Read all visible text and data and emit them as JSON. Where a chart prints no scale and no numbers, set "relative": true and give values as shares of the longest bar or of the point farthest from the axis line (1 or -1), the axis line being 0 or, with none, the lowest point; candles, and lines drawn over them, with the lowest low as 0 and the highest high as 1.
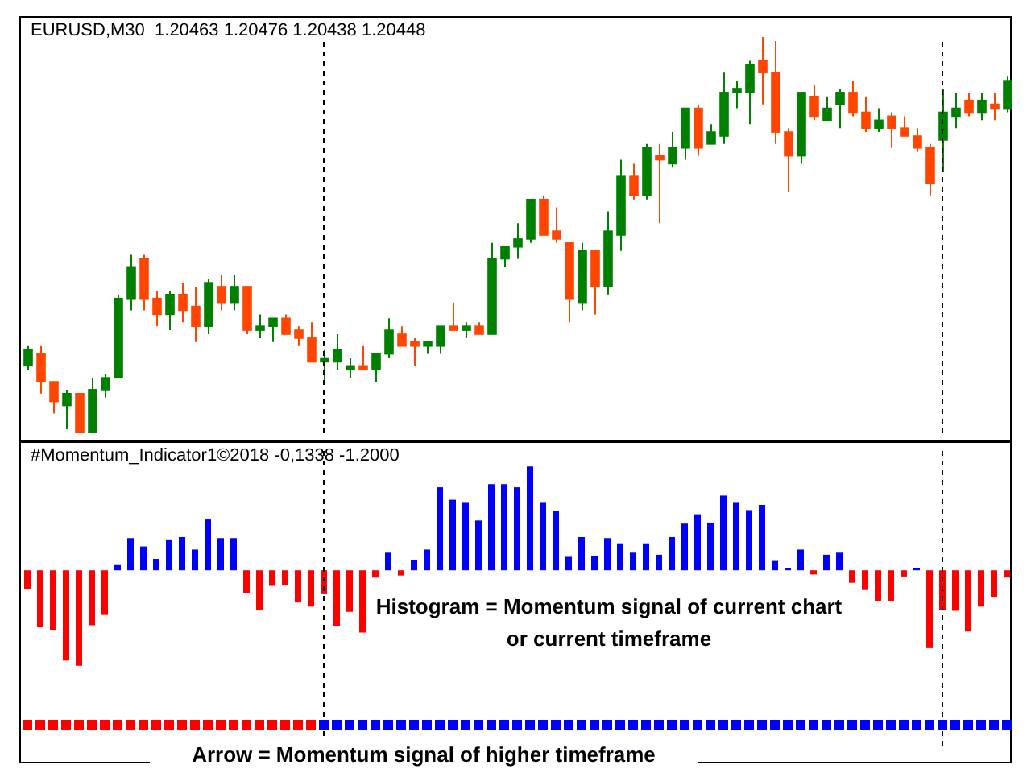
{
  "chart_data": [
    {
      "type": "candlestick",
      "title": "EURUSD,M30  1.20463 1.20476 1.20438 1.20448",
      "relative": true,
      "categories": [
        null,
        null,
        null,
        null,
        null,
        null,
        null,
        null,
        null,
        null,
        null,
        null,
        null,
        null,
        null,
        null,
        null,
        null,
        null,
        null,
        null,
        null,
        null,
        null,
        null,
        null,
        null,
        null,
        null,
        null,
        null,
        null,
        null,
        null,
        null,
        null,
        null,
        null,
        null,
        null,
        null,
        null,
        null,
        null,
        null,
        null,
        null,
        null,
        null,
        null,
        null,
        null,
        null,
        null,
        null,
        null,
        null,
        null,
        null,
        null,
        null,
        null,
        null,
        null,
        null,
        null,
        null,
        null,
        null,
        null,
        null,
        null,
        null,
        null,
        null,
        null,
        null
      ],
      "ohlc": [
        [
          0.17,
          0.22,
          0.16,
          0.21
        ],
        [
          0.2,
          0.22,
          0.1,
          0.13
        ],
        [
          0.13,
          0.13,
          0.05,
          0.08
        ],
        [
          0.07,
          0.11,
          0.01,
          0.1
        ],
        [
          0.1,
          0.1,
          0,
          0
        ],
        [
          0,
          0.14,
          0,
          0.11
        ],
        [
          0.11,
          0.15,
          0.09,
          0.14
        ],
        [
          0.14,
          0.35,
          0.14,
          0.34
        ],
        [
          0.34,
          0.45,
          0.31,
          0.42
        ],
        [
          0.44,
          0.45,
          0.31,
          0.34
        ],
        [
          0.34,
          0.36,
          0.27,
          0.3
        ],
        [
          0.3,
          0.36,
          0.26,
          0.35
        ],
        [
          0.35,
          0.38,
          0.28,
          0.31
        ],
        [
          0.32,
          0.37,
          0.23,
          0.27
        ],
        [
          0.27,
          0.39,
          0.25,
          0.38
        ],
        [
          0.37,
          0.4,
          0.31,
          0.33
        ],
        [
          0.33,
          0.4,
          0.31,
          0.37
        ],
        [
          0.37,
          0.37,
          0.25,
          0.26
        ],
        [
          0.26,
          0.3,
          0.24,
          0.27
        ],
        [
          0.27,
          0.29,
          0.23,
          0.29
        ],
        [
          0.29,
          0.3,
          0.25,
          0.25
        ],
        [
          0.26,
          0.27,
          0.22,
          0.24
        ],
        [
          0.24,
          0.28,
          0.18,
          0.18
        ],
        [
          0.18,
          0.21,
          0.13,
          0.19
        ],
        [
          0.18,
          0.25,
          0.16,
          0.21
        ],
        [
          0.16,
          0.19,
          0.14,
          0.17
        ],
        [
          0.17,
          0.22,
          0.16,
          0.16
        ],
        [
          0.16,
          0.2,
          0.13,
          0.2
        ],
        [
          0.2,
          0.29,
          0.19,
          0.26
        ],
        [
          0.25,
          0.27,
          0.22,
          0.22
        ],
        [
          0.23,
          0.24,
          0.17,
          0.22
        ],
        [
          0.22,
          0.23,
          0.2,
          0.23
        ],
        [
          0.22,
          0.27,
          0.2,
          0.27
        ],
        [
          0.27,
          0.33,
          0.26,
          0.26
        ],
        [
          0.26,
          0.28,
          0.24,
          0.27
        ],
        [
          0.27,
          0.28,
          0.25,
          0.25
        ],
        [
          0.25,
          0.48,
          0.25,
          0.44
        ],
        [
          0.44,
          0.47,
          0.42,
          0.47
        ],
        [
          0.47,
          0.53,
          0.44,
          0.49
        ],
        [
          0.49,
          0.59,
          0.48,
          0.59
        ],
        [
          0.59,
          0.6,
          0.5,
          0.5
        ],
        [
          0.51,
          0.57,
          0.48,
          0.49
        ],
        [
          0.48,
          0.48,
          0.28,
          0.34
        ],
        [
          0.33,
          0.48,
          0.31,
          0.46
        ],
        [
          0.46,
          0.46,
          0.3,
          0.37
        ],
        [
          0.37,
          0.56,
          0.35,
          0.51
        ],
        [
          0.5,
          0.69,
          0.46,
          0.65
        ],
        [
          0.65,
          0.68,
          0.59,
          0.6
        ],
        [
          0.6,
          0.73,
          0.59,
          0.72
        ],
        [
          0.7,
          0.73,
          0.53,
          0.69
        ],
        [
          0.68,
          0.76,
          0.67,
          0.72
        ],
        [
          0.72,
          0.82,
          0.69,
          0.82
        ],
        [
          0.82,
          0.83,
          0.7,
          0.72
        ],
        [
          0.73,
          0.78,
          0.73,
          0.76
        ],
        [
          0.75,
          0.91,
          0.73,
          0.86
        ],
        [
          0.86,
          0.89,
          0.82,
          0.87
        ],
        [
          0.86,
          0.94,
          0.78,
          0.93
        ],
        [
          0.94,
          1,
          0.83,
          0.91
        ],
        [
          0.91,
          0.99,
          0.73,
          0.76
        ],
        [
          0.76,
          0.77,
          0.61,
          0.7
        ],
        [
          0.7,
          0.86,
          0.68,
          0.86
        ],
        [
          0.85,
          0.88,
          0.79,
          0.8
        ],
        [
          0.79,
          0.85,
          0.79,
          0.82
        ],
        [
          0.83,
          0.87,
          0.77,
          0.86
        ],
        [
          0.86,
          0.89,
          0.8,
          0.81
        ],
        [
          0.81,
          0.85,
          0.76,
          0.77
        ],
        [
          0.77,
          0.82,
          0.76,
          0.79
        ],
        [
          0.8,
          0.81,
          0.72,
          0.77
        ],
        [
          0.77,
          0.8,
          0.75,
          0.75
        ],
        [
          0.75,
          0.77,
          0.71,
          0.72
        ],
        [
          0.72,
          0.73,
          0.6,
          0.63
        ],
        [
          0.74,
          0.87,
          0.66,
          0.81
        ],
        [
          0.8,
          0.86,
          0.77,
          0.82
        ],
        [
          0.84,
          0.86,
          0.8,
          0.81
        ],
        [
          0.81,
          0.86,
          0.79,
          0.84
        ],
        [
          0.83,
          0.86,
          0.79,
          0.82
        ],
        [
          0.82,
          0.9,
          0.81,
          0.89
        ]
      ],
      "colors": [
        "#008000",
        "#ff4500",
        "#ff4500",
        "#008000",
        "#ff4500",
        "#008000",
        "#008000",
        "#008000",
        "#008000",
        "#ff4500",
        "#ff4500",
        "#008000",
        "#ff4500",
        "#ff4500",
        "#008000",
        "#ff4500",
        "#008000",
        "#ff4500",
        "#008000",
        "#008000",
        "#ff4500",
        "#ff4500",
        "#ff4500",
        "#008000",
        "#008000",
        "#008000",
        "#ff4500",
        "#008000",
        "#008000",
        "#ff4500",
        "#ff4500",
        "#008000",
        "#008000",
        "#ff4500",
        "#008000",
        "#ff4500",
        "#008000",
        "#008000",
        "#008000",
        "#008000",
        "#ff4500",
        "#ff4500",
        "#ff4500",
        "#008000",
        "#ff4500",
        "#008000",
        "#008000",
        "#ff4500",
        "#008000",
        "#ff4500",
        "#008000",
        "#008000",
        "#ff4500",
        "#008000",
        "#008000",
        "#008000",
        "#008000",
        "#ff4500",
        "#ff4500",
        "#ff4500",
        "#008000",
        "#ff4500",
        "#008000",
        "#008000",
        "#ff4500",
        "#ff4500",
        "#008000",
        "#ff4500",
        "#ff4500",
        "#ff4500",
        "#ff4500",
        "#008000",
        "#008000",
        "#ff4500",
        "#008000",
        "#ff4500",
        "#008000"
      ]
    },
    {
      "type": "bar",
      "title": "#Momentum_Indicator1©2018 -0,1338 -1.2000",
      "relative": true,
      "categories": [
        null,
        null,
        null,
        null,
        null,
        null,
        null,
        null,
        null,
        null,
        null,
        null,
        null,
        null,
        null,
        null,
        null,
        null,
        null,
        null,
        null,
        null,
        null,
        null,
        null,
        null,
        null,
        null,
        null,
        null,
        null,
        null,
        null,
        null,
        null,
        null,
        null,
        null,
        null,
        null,
        null,
        null,
        null,
        null,
        null,
        null,
        null,
        null,
        null,
        null,
        null,
        null,
        null,
        null,
        null,
        null,
        null,
        null,
        null,
        null,
        null,
        null,
        null,
        null,
        null,
        null,
        null,
        null,
        null,
        null,
        null,
        null,
        null,
        null,
        null,
        null,
        null
      ],
      "values": [
        -0.18,
        -0.55,
        -0.58,
        -0.87,
        -0.92,
        -0.53,
        -0.43,
        0.05,
        0.31,
        0.23,
        0.11,
        0.29,
        0.32,
        0.2,
        0.49,
        0.31,
        0.31,
        -0.22,
        -0.38,
        -0.15,
        -0.14,
        -0.31,
        -0.35,
        -0.23,
        -0.54,
        -0.4,
        -0.6,
        -0.07,
        0.17,
        -0.05,
        0.1,
        0.2,
        0.8,
        0.68,
        0.65,
        0.48,
        0.83,
        0.83,
        0.8,
        1,
        0.65,
        0.57,
        0.13,
        0.32,
        0.14,
        0.31,
        0.26,
        0.17,
        0.26,
        0.15,
        0.32,
        0.45,
        0.54,
        0.46,
        0.72,
        0.65,
        0.58,
        0.63,
        0.09,
        0.02,
        0.2,
        -0.04,
        0.15,
        0.17,
        -0.12,
        -0.19,
        -0.3,
        -0.3,
        -0.06,
        0.02,
        -0.75,
        -0.38,
        -0.39,
        -0.59,
        -0.35,
        -0.26,
        -0.07
      ],
      "colors": [
        "#ff0000",
        "#ff0000",
        "#ff0000",
        "#ff0000",
        "#ff0000",
        "#ff0000",
        "#ff0000",
        "#0000ff",
        "#0000ff",
        "#0000ff",
        "#0000ff",
        "#0000ff",
        "#0000ff",
        "#0000ff",
        "#0000ff",
        "#0000ff",
        "#0000ff",
        "#ff0000",
        "#ff0000",
        "#ff0000",
        "#ff0000",
        "#ff0000",
        "#ff0000",
        "#ff0000",
        "#ff0000",
        "#ff0000",
        "#ff0000",
        "#ff0000",
        "#0000ff",
        "#ff0000",
        "#0000ff",
        "#0000ff",
        "#0000ff",
        "#0000ff",
        "#0000ff",
        "#0000ff",
        "#0000ff",
        "#0000ff",
        "#0000ff",
        "#0000ff",
        "#0000ff",
        "#0000ff",
        "#0000ff",
        "#0000ff",
        "#0000ff",
        "#0000ff",
        "#0000ff",
        "#0000ff",
        "#0000ff",
        "#0000ff",
        "#0000ff",
        "#0000ff",
        "#0000ff",
        "#0000ff",
        "#0000ff",
        "#0000ff",
        "#0000ff",
        "#0000ff",
        "#0000ff",
        "#0000ff",
        "#0000ff",
        "#ff0000",
        "#0000ff",
        "#0000ff",
        "#ff0000",
        "#ff0000",
        "#ff0000",
        "#ff0000",
        "#ff0000",
        "#0000ff",
        "#ff0000",
        "#ff0000",
        "#ff0000",
        "#ff0000",
        "#ff0000",
        "#ff0000",
        "#ff0000"
      ],
      "annotations": [
        "Histogram = Momentum signal of current chart\nor current timeframe",
        "Arrow = Momentum signal of higher timeframe"
      ]
    }
  ]
}
